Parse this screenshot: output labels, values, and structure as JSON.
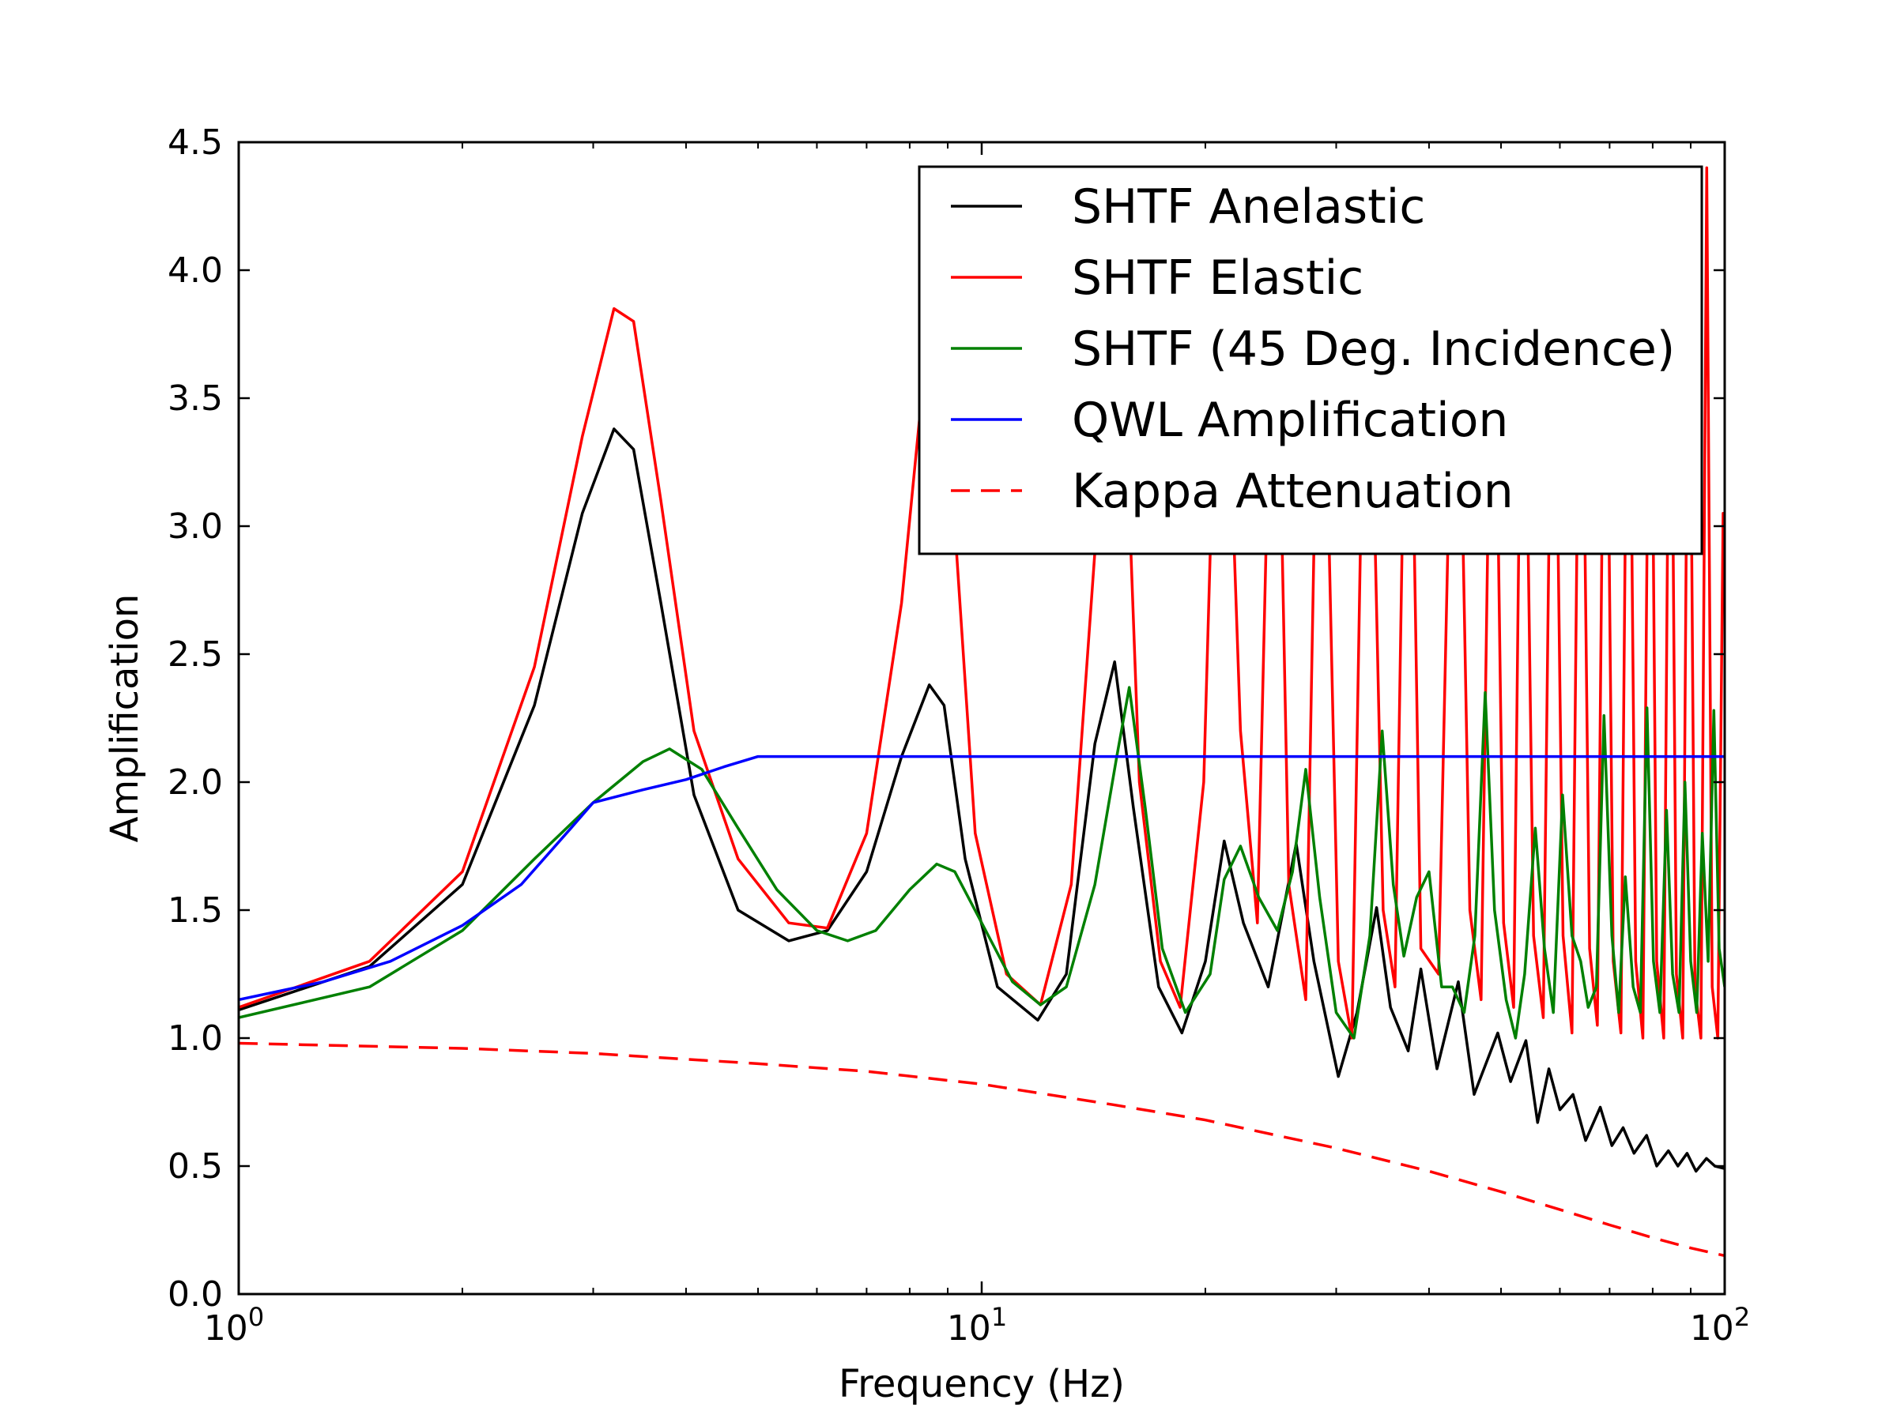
{
  "chart_data": {
    "type": "line",
    "title": "",
    "xlabel": "Frequency (Hz)",
    "ylabel": "Amplification",
    "xscale": "log",
    "xlim": [
      1,
      100
    ],
    "ylim": [
      0,
      4.5
    ],
    "x_ticks": [
      {
        "value": 1,
        "base": "10",
        "exp": "0"
      },
      {
        "value": 10,
        "base": "10",
        "exp": "1"
      },
      {
        "value": 100,
        "base": "10",
        "exp": "2"
      }
    ],
    "y_ticks": [
      {
        "value": 0,
        "label": "0.0"
      },
      {
        "value": 0.5,
        "label": "0.5"
      },
      {
        "value": 1,
        "label": "1.0"
      },
      {
        "value": 1.5,
        "label": "1.5"
      },
      {
        "value": 2,
        "label": "2.0"
      },
      {
        "value": 2.5,
        "label": "2.5"
      },
      {
        "value": 3,
        "label": "3.0"
      },
      {
        "value": 3.5,
        "label": "3.5"
      },
      {
        "value": 4,
        "label": "4.0"
      },
      {
        "value": 4.5,
        "label": "4.5"
      }
    ],
    "grid": false,
    "legend_position": "top-right",
    "series": [
      {
        "name": "SHTF Anelastic",
        "color": "#000000",
        "dash": "solid",
        "x": [
          1.0,
          1.5,
          2.0,
          2.5,
          2.9,
          3.2,
          3.4,
          3.7,
          4.1,
          4.7,
          5.5,
          6.2,
          7.0,
          7.8,
          8.5,
          8.9,
          9.5,
          10.5,
          11.9,
          13.0,
          14.2,
          15.1,
          16.0,
          17.3,
          18.6,
          20.0,
          21.2,
          22.5,
          24.3,
          26.5,
          28.0,
          30.2,
          32.0,
          34.0,
          35.5,
          37.5,
          39.0,
          41.0,
          43.8,
          46.0,
          49.5,
          51.5,
          54.0,
          56.0,
          58.0,
          60.0,
          62.5,
          65.0,
          68.0,
          70.5,
          73.0,
          75.5,
          78.5,
          81.0,
          84.0,
          86.5,
          89.0,
          91.5,
          94.5,
          97.0,
          100.0
        ],
        "y": [
          1.11,
          1.28,
          1.6,
          2.3,
          3.05,
          3.38,
          3.3,
          2.7,
          1.95,
          1.5,
          1.38,
          1.42,
          1.65,
          2.1,
          2.38,
          2.3,
          1.7,
          1.2,
          1.07,
          1.25,
          2.15,
          2.47,
          1.9,
          1.2,
          1.02,
          1.3,
          1.77,
          1.45,
          1.2,
          1.76,
          1.3,
          0.85,
          1.1,
          1.51,
          1.12,
          0.95,
          1.27,
          0.88,
          1.22,
          0.78,
          1.02,
          0.83,
          0.99,
          0.67,
          0.88,
          0.72,
          0.78,
          0.6,
          0.73,
          0.58,
          0.65,
          0.55,
          0.62,
          0.5,
          0.56,
          0.5,
          0.55,
          0.48,
          0.53,
          0.5,
          0.49
        ]
      },
      {
        "name": "SHTF Elastic",
        "color": "#ff0000",
        "dash": "solid",
        "x": [
          1.0,
          1.5,
          2.0,
          2.5,
          2.9,
          3.2,
          3.4,
          3.7,
          4.1,
          4.7,
          5.5,
          6.2,
          7.0,
          7.8,
          8.3,
          8.7,
          9.2,
          9.8,
          10.8,
          12.0,
          13.2,
          14.2,
          15.2,
          16.3,
          17.4,
          18.5,
          19.9,
          21.0,
          22.3,
          23.5,
          24.8,
          25.9,
          27.3,
          28.6,
          30.2,
          31.5,
          33.0,
          34.7,
          36.0,
          37.5,
          39.0,
          41.2,
          43.5,
          45.4,
          47.0,
          48.8,
          50.4,
          52.0,
          53.5,
          55.3,
          57.0,
          58.8,
          60.6,
          62.3,
          64.0,
          65.8,
          67.4,
          69.1,
          70.8,
          72.5,
          74.2,
          75.9,
          77.6,
          79.4,
          81.0,
          82.8,
          84.5,
          86.1,
          87.8,
          89.5,
          91.2,
          92.9,
          94.6,
          96.2,
          97.9,
          99.5,
          100.0
        ],
        "y": [
          1.12,
          1.3,
          1.65,
          2.45,
          3.35,
          3.85,
          3.8,
          3.1,
          2.2,
          1.7,
          1.45,
          1.43,
          1.8,
          2.7,
          3.5,
          3.9,
          3.0,
          1.8,
          1.25,
          1.13,
          1.6,
          2.9,
          4.4,
          2.0,
          1.3,
          1.12,
          2.0,
          4.4,
          2.2,
          1.45,
          4.4,
          1.6,
          1.15,
          4.4,
          1.3,
          1.0,
          4.4,
          1.5,
          1.2,
          4.4,
          1.35,
          1.25,
          4.4,
          1.5,
          1.15,
          4.4,
          1.45,
          1.12,
          4.4,
          1.4,
          1.08,
          4.4,
          1.4,
          1.02,
          4.4,
          1.35,
          1.05,
          4.4,
          1.3,
          1.02,
          4.4,
          1.3,
          1.0,
          4.4,
          1.3,
          1.0,
          4.4,
          1.25,
          1.0,
          4.4,
          1.2,
          1.0,
          4.4,
          1.2,
          1.0,
          3.05,
          3.05
        ]
      },
      {
        "name": "SHTF (45 Deg. Incidence)",
        "color": "#008000",
        "dash": "solid",
        "x": [
          1.0,
          1.5,
          2.0,
          2.5,
          3.0,
          3.5,
          3.8,
          4.2,
          4.7,
          5.3,
          6.0,
          6.6,
          7.2,
          8.0,
          8.7,
          9.2,
          10.0,
          11.0,
          12.0,
          13.0,
          14.2,
          15.2,
          15.8,
          16.6,
          17.5,
          18.8,
          20.3,
          21.2,
          22.3,
          23.6,
          25.0,
          26.2,
          27.3,
          28.5,
          30.0,
          31.7,
          33.3,
          34.6,
          35.8,
          37.0,
          38.5,
          40.0,
          41.6,
          43.0,
          44.6,
          46.1,
          47.6,
          49.0,
          50.8,
          52.3,
          53.8,
          55.6,
          57.2,
          58.8,
          60.5,
          62.3,
          64.0,
          65.5,
          67.2,
          68.8,
          70.5,
          72.0,
          73.5,
          75.3,
          77.0,
          78.6,
          80.2,
          81.8,
          83.5,
          85.1,
          86.8,
          88.4,
          90.0,
          91.7,
          93.3,
          95.0,
          96.7,
          98.3,
          100.0
        ],
        "y": [
          1.08,
          1.2,
          1.42,
          1.7,
          1.92,
          2.08,
          2.13,
          2.05,
          1.82,
          1.58,
          1.42,
          1.38,
          1.42,
          1.58,
          1.68,
          1.65,
          1.45,
          1.22,
          1.13,
          1.2,
          1.6,
          2.1,
          2.37,
          1.9,
          1.35,
          1.1,
          1.25,
          1.62,
          1.75,
          1.55,
          1.42,
          1.65,
          2.05,
          1.55,
          1.1,
          1.0,
          1.4,
          2.2,
          1.6,
          1.32,
          1.55,
          1.65,
          1.2,
          1.2,
          1.1,
          1.4,
          2.35,
          1.5,
          1.15,
          1.0,
          1.25,
          1.82,
          1.35,
          1.1,
          1.95,
          1.4,
          1.3,
          1.12,
          1.2,
          2.26,
          1.4,
          1.1,
          1.63,
          1.2,
          1.1,
          2.29,
          1.3,
          1.1,
          1.89,
          1.25,
          1.1,
          2.0,
          1.3,
          1.1,
          1.8,
          1.3,
          2.28,
          1.35,
          1.2
        ]
      },
      {
        "name": "QWL Amplification",
        "color": "#0000ff",
        "dash": "solid",
        "x": [
          1.0,
          1.3,
          1.6,
          2.0,
          2.4,
          2.8,
          3.0,
          3.5,
          4.0,
          4.5,
          5.0,
          10.0,
          20.0,
          50.0,
          100.0
        ],
        "y": [
          1.15,
          1.22,
          1.3,
          1.44,
          1.6,
          1.82,
          1.92,
          1.97,
          2.01,
          2.06,
          2.1,
          2.1,
          2.1,
          2.1,
          2.1
        ]
      },
      {
        "name": "Kappa Attenuation",
        "color": "#ff0000",
        "dash": "dashed",
        "x": [
          1.0,
          2.0,
          3.0,
          5.0,
          7.0,
          10.0,
          15.0,
          20.0,
          30.0,
          40.0,
          50.0,
          60.0,
          70.0,
          80.0,
          90.0,
          100.0
        ],
        "y": [
          0.98,
          0.96,
          0.94,
          0.9,
          0.87,
          0.82,
          0.74,
          0.68,
          0.57,
          0.48,
          0.4,
          0.33,
          0.27,
          0.22,
          0.18,
          0.15
        ]
      }
    ]
  }
}
